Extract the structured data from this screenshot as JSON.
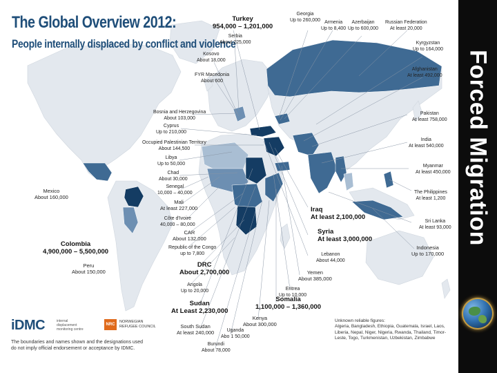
{
  "header": {
    "title": "The Global Overview 2012:",
    "subtitle": "People internally displaced by conflict and violence"
  },
  "side_title": "Forced Migration",
  "colors": {
    "ocean": "#ffffff",
    "land": "#e3e8ee",
    "idp_light": "#a9bed3",
    "idp_mid": "#6d8fb2",
    "idp_dark": "#3f6a93",
    "idp_darkest": "#143c63",
    "title": "#1f4e79",
    "side_band": "#0c0c0c"
  },
  "labels": [
    {
      "key": "turkey",
      "country": "Turkey",
      "value": "954,000 – 1,201,000",
      "size": "big"
    },
    {
      "key": "georgia",
      "country": "Georgia",
      "value": "Up to 260,000",
      "size": "small"
    },
    {
      "key": "armenia",
      "country": "Armenia",
      "value": "Up to 8,400",
      "size": "small"
    },
    {
      "key": "azerbaijan",
      "country": "Azerbaijan",
      "value": "Up to 600,000",
      "size": "small"
    },
    {
      "key": "russia",
      "country": "Russian Federation",
      "value": "At least 20,000",
      "size": "small"
    },
    {
      "key": "serbia",
      "country": "Serbia",
      "value": "About 225,000",
      "size": "small"
    },
    {
      "key": "kyrgyzstan",
      "country": "Kyrgyzstan",
      "value": "Up to 164,000",
      "size": "small"
    },
    {
      "key": "kosovo",
      "country": "Kosovo",
      "value": "About 18,000",
      "size": "small"
    },
    {
      "key": "afghanistan",
      "country": "Afghanistan",
      "value": "At least 492,000",
      "size": "small"
    },
    {
      "key": "fyr_macedonia",
      "country": "FYR Macedonia",
      "value": "About 600",
      "size": "small"
    },
    {
      "key": "bosnia",
      "country": "Bosnia and Herzegovina",
      "value": "About 103,000",
      "size": "small"
    },
    {
      "key": "pakistan",
      "country": "Pakistan",
      "value": "At least 758,000",
      "size": "small"
    },
    {
      "key": "cyprus",
      "country": "Cyprus",
      "value": "Up to 210,000",
      "size": "small"
    },
    {
      "key": "palestine",
      "country": "Occupied Palestinian Territory",
      "value": "About 144,500",
      "size": "small"
    },
    {
      "key": "india",
      "country": "India",
      "value": "At least 540,000",
      "size": "small"
    },
    {
      "key": "libya",
      "country": "Libya",
      "value": "Up to 50,000",
      "size": "small"
    },
    {
      "key": "chad",
      "country": "Chad",
      "value": "About 30,000",
      "size": "small"
    },
    {
      "key": "myanmar",
      "country": "Myanmar",
      "value": "At least 450,000",
      "size": "small"
    },
    {
      "key": "senegal",
      "country": "Senegal",
      "value": "10,000 – 40,000",
      "size": "small"
    },
    {
      "key": "mexico",
      "country": "Mexico",
      "value": "About 160,000",
      "size": "small"
    },
    {
      "key": "philippines",
      "country": "The Philippines",
      "value": "At least 1,200",
      "size": "small"
    },
    {
      "key": "mali",
      "country": "Mali",
      "value": "At least 227,000",
      "size": "small"
    },
    {
      "key": "iraq",
      "country": "Iraq",
      "value": "At least 2,100,000",
      "size": "big"
    },
    {
      "key": "cote_divoire",
      "country": "Côte d'Ivoire",
      "value": "40,000 – 80,000",
      "size": "small"
    },
    {
      "key": "sri_lanka",
      "country": "Sri Lanka",
      "value": "At least 93,000",
      "size": "small"
    },
    {
      "key": "car",
      "country": "CAR",
      "value": "About 132,000",
      "size": "small"
    },
    {
      "key": "syria",
      "country": "Syria",
      "value": "At least 3,000,000",
      "size": "big"
    },
    {
      "key": "colombia",
      "country": "Colombia",
      "value": "4,900,000 – 5,500,000",
      "size": "big"
    },
    {
      "key": "congo",
      "country": "Republic of the Congo",
      "value": "up to 7,800",
      "size": "small"
    },
    {
      "key": "lebanon",
      "country": "Lebanon",
      "value": "About 44,000",
      "size": "small"
    },
    {
      "key": "indonesia",
      "country": "Indonesia",
      "value": "Up to 170,000",
      "size": "small"
    },
    {
      "key": "drc",
      "country": "DRC",
      "value": "About 2,700,000",
      "size": "big"
    },
    {
      "key": "peru",
      "country": "Peru",
      "value": "About 150,000",
      "size": "small"
    },
    {
      "key": "yemen",
      "country": "Yemen",
      "value": "About 385,000",
      "size": "small"
    },
    {
      "key": "angola",
      "country": "Angola",
      "value": "Up to 20,000",
      "size": "small"
    },
    {
      "key": "eritrea",
      "country": "Eritrea",
      "value": "Up to 10,000",
      "size": "small"
    },
    {
      "key": "sudan",
      "country": "Sudan",
      "value": "At Least 2,230,000",
      "size": "big"
    },
    {
      "key": "somalia",
      "country": "Somalia",
      "value": "1,100,000 – 1,360,000",
      "size": "big"
    },
    {
      "key": "kenya",
      "country": "Kenya",
      "value": "About 300,000",
      "size": "small"
    },
    {
      "key": "south_sudan",
      "country": "South Sudan",
      "value": "At least 240,000",
      "size": "small"
    },
    {
      "key": "uganda",
      "country": "Uganda",
      "value": "Abo 1 50,000",
      "size": "small"
    },
    {
      "key": "burundi",
      "country": "Burundi",
      "value": "About 78,000",
      "size": "small"
    }
  ],
  "footer": {
    "idmc_logo": "iDMC",
    "idmc_sub": "internal displacement monitoring centre",
    "nrc_badge": "NRC",
    "nrc_name": "NORWEGIAN REFUGEE COUNCIL",
    "disclaimer": "The boundaries and names shown and the designations used do not imply official endorsement or acceptance by IDMC.",
    "unknown_heading": "Unknown reliable figures:",
    "unknown_list": "Algeria, Bangladesh, Ethiopia, Guatemala, Israel, Laos, Liberia, Nepal, Niger, Nigeria, Rwanda, Thailand, Timor-Leste, Togo, Turkmenistan, Uzbekistan, Zimbabwe"
  }
}
